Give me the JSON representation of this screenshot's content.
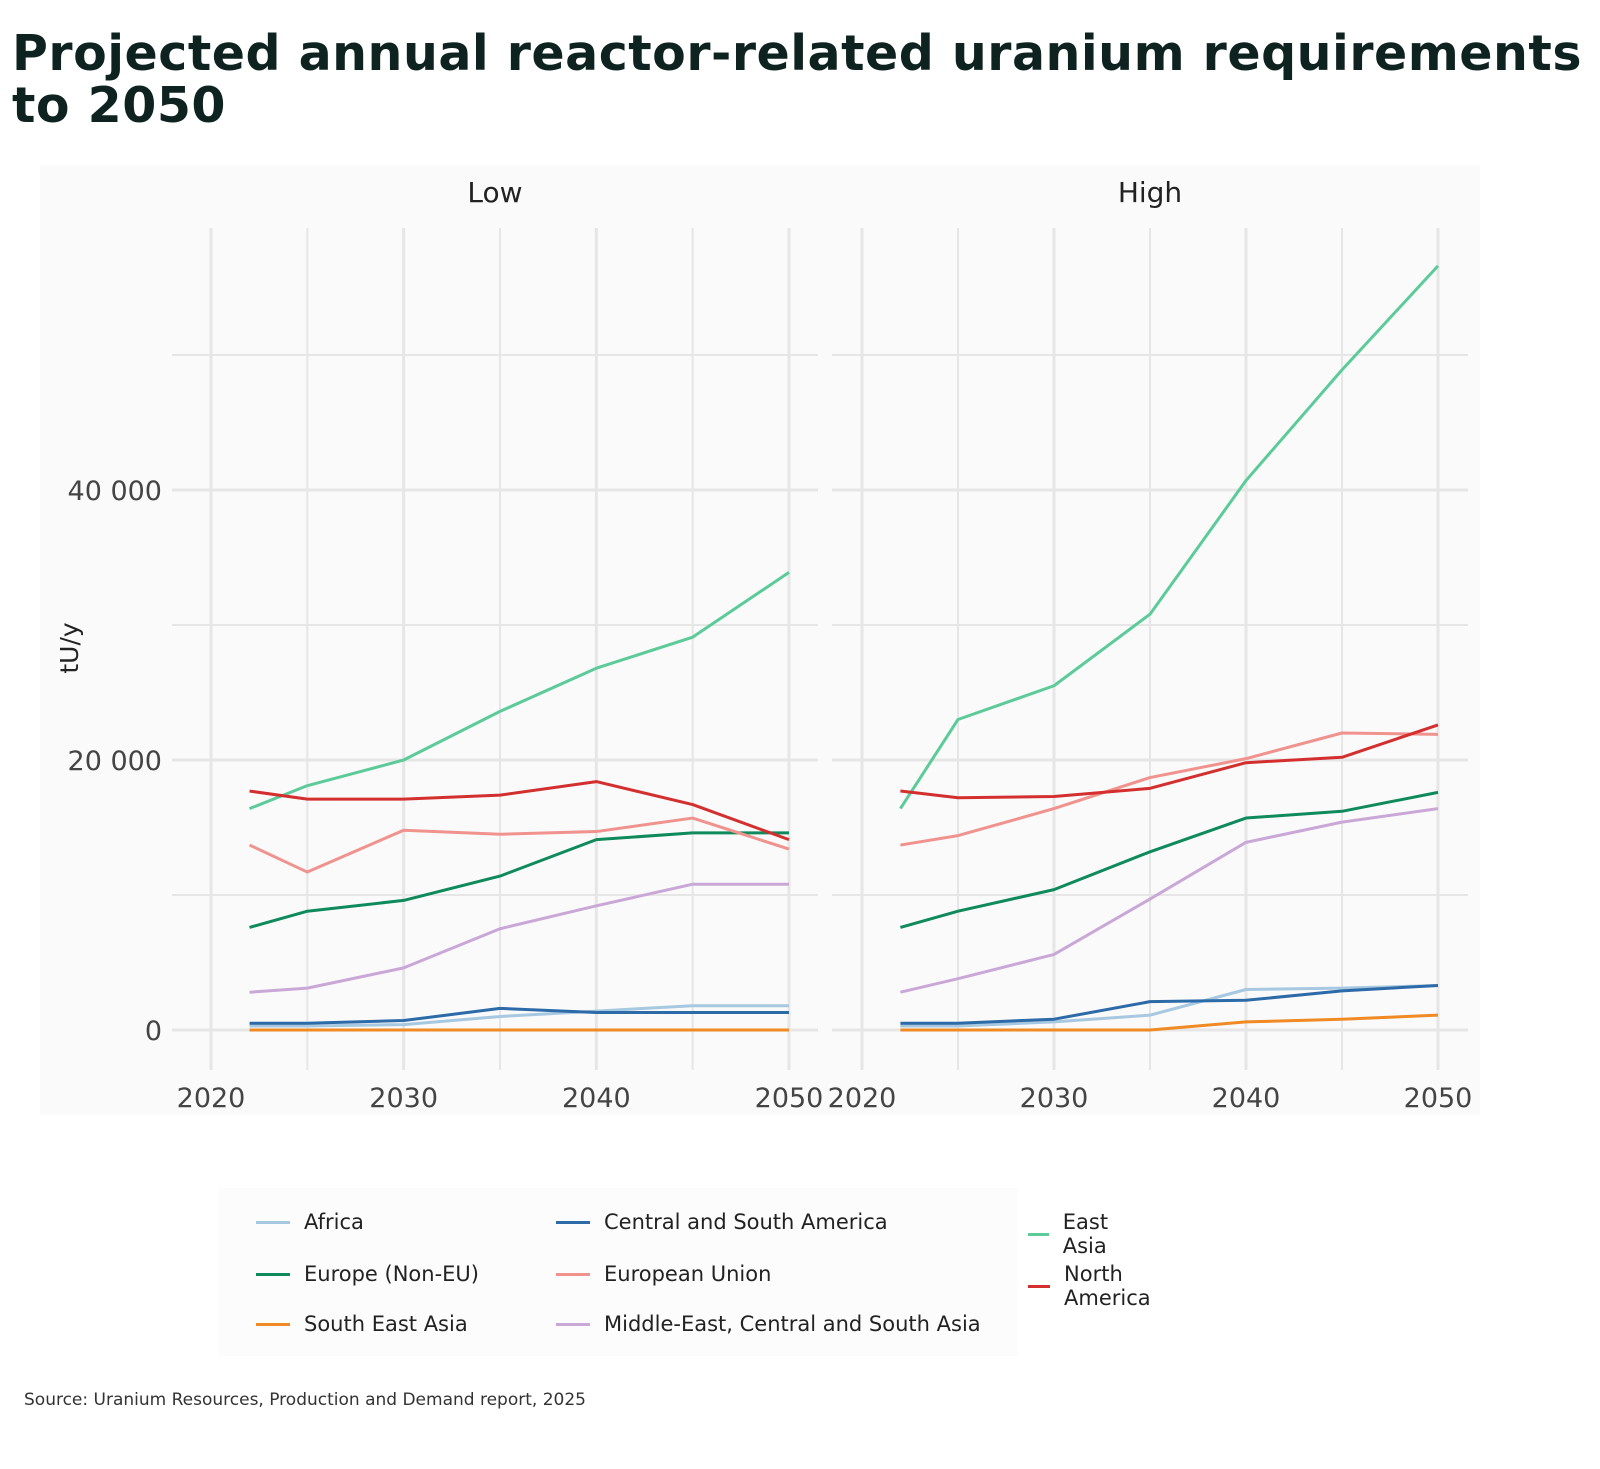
{
  "title": "Projected annual reactor-related uranium requirements to 2050",
  "source": "Source: Uranium Resources, Production and Demand report, 2025",
  "chart_data": {
    "type": "line",
    "ylabel": "tU/y",
    "x": [
      2022,
      2025,
      2030,
      2035,
      2040,
      2045,
      2050
    ],
    "xticks": [
      "2020",
      "2030",
      "2040",
      "2050"
    ],
    "yticks": [
      "0",
      "20 000",
      "40 000"
    ],
    "xlim": [
      2018,
      2051.5
    ],
    "ylim": [
      -2500,
      58000
    ],
    "grid": true,
    "legend_position": "bottom",
    "panels": [
      {
        "name": "Low",
        "series": [
          {
            "name": "Africa",
            "color": "#a6c8e0",
            "values": [
              300,
              300,
              400,
              1000,
              1400,
              1800,
              1800
            ]
          },
          {
            "name": "Central and South America",
            "color": "#2c6aa8",
            "values": [
              500,
              500,
              700,
              1600,
              1300,
              1300,
              1300
            ]
          },
          {
            "name": "East Asia",
            "color": "#5ccb99",
            "values": [
              16400,
              18100,
              20000,
              23600,
              26800,
              29100,
              33900
            ]
          },
          {
            "name": "Europe (Non-EU)",
            "color": "#0f8a5c",
            "values": [
              7600,
              8800,
              9600,
              11400,
              14100,
              14600,
              14600
            ]
          },
          {
            "name": "European Union",
            "color": "#f0928e",
            "values": [
              13700,
              11700,
              14800,
              14500,
              14700,
              15700,
              13400
            ]
          },
          {
            "name": "North America",
            "color": "#d42f2f",
            "values": [
              17700,
              17100,
              17100,
              17400,
              18400,
              16700,
              14100
            ]
          },
          {
            "name": "South East Asia",
            "color": "#f08a24",
            "values": [
              0,
              0,
              0,
              0,
              0,
              0,
              0
            ]
          },
          {
            "name": "Middle-East, Central and South Asia",
            "color": "#c9a8d8",
            "values": [
              2800,
              3100,
              4600,
              7500,
              9200,
              10800,
              10800
            ]
          }
        ]
      },
      {
        "name": "High",
        "series": [
          {
            "name": "Africa",
            "color": "#a6c8e0",
            "values": [
              300,
              300,
              600,
              1100,
              3000,
              3100,
              3300
            ]
          },
          {
            "name": "Central and South America",
            "color": "#2c6aa8",
            "values": [
              500,
              500,
              800,
              2100,
              2200,
              2900,
              3300
            ]
          },
          {
            "name": "East Asia",
            "color": "#5ccb99",
            "values": [
              16400,
              23000,
              25500,
              30800,
              40700,
              48900,
              56600
            ]
          },
          {
            "name": "Europe (Non-EU)",
            "color": "#0f8a5c",
            "values": [
              7600,
              8800,
              10400,
              13200,
              15700,
              16200,
              17600
            ]
          },
          {
            "name": "European Union",
            "color": "#f0928e",
            "values": [
              13700,
              14400,
              16400,
              18700,
              20100,
              22000,
              21900
            ]
          },
          {
            "name": "North America",
            "color": "#d42f2f",
            "values": [
              17700,
              17200,
              17300,
              17900,
              19800,
              20200,
              22600
            ]
          },
          {
            "name": "South East Asia",
            "color": "#f08a24",
            "values": [
              0,
              0,
              0,
              0,
              600,
              800,
              1100
            ]
          },
          {
            "name": "Middle-East, Central and South Asia",
            "color": "#c9a8d8",
            "values": [
              2800,
              3800,
              5600,
              9700,
              13900,
              15400,
              16400
            ]
          }
        ]
      }
    ],
    "legend": [
      "Africa",
      "Central and South America",
      "East Asia",
      "Europe (Non-EU)",
      "European Union",
      "North America",
      "South East Asia",
      "Middle-East, Central and South Asia"
    ]
  }
}
